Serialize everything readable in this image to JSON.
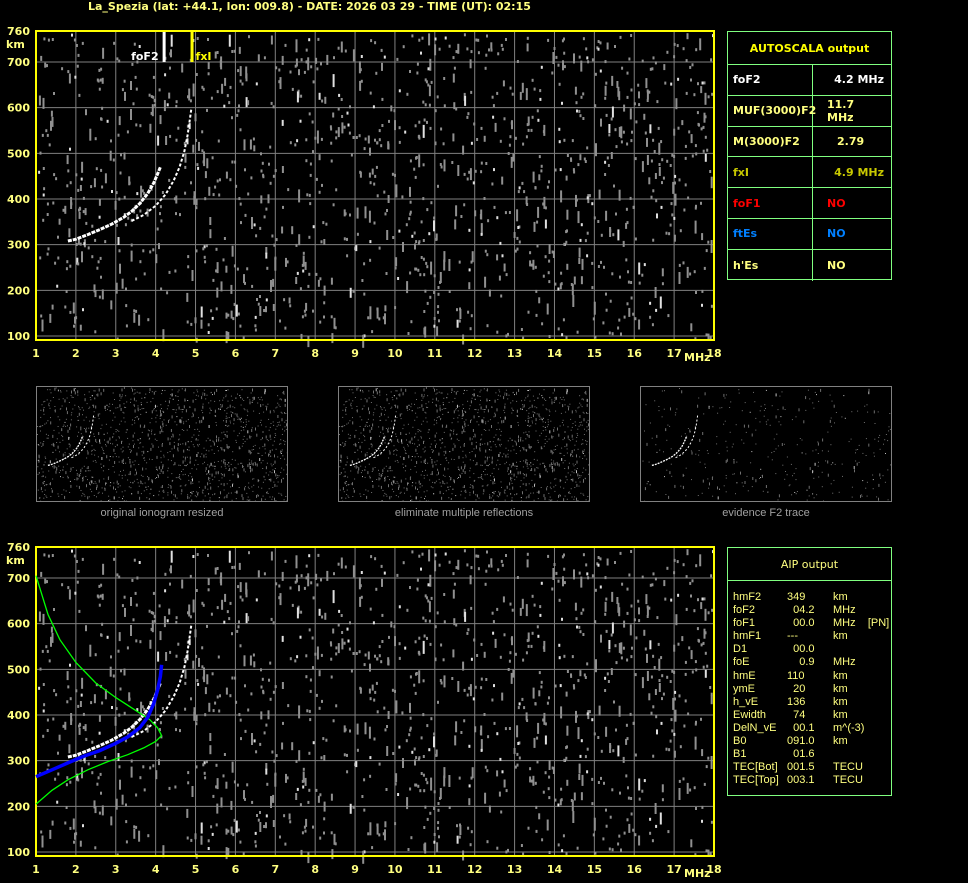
{
  "header": {
    "title": "La_Spezia (lat: +44.1, lon: 009.8) - DATE: 2026 03 29 - TIME (UT): 02:15"
  },
  "colors": {
    "frame": "#ffff00",
    "grid": "#808080",
    "label": "#ffff80",
    "table_border": "#80ff80",
    "trace": "#ffffff",
    "profile": "#00ff00",
    "aip_trace": "#0000ff",
    "foF1": "#ff0000",
    "ftEs": "#0080ff",
    "fxI": "#c8c800"
  },
  "axes": {
    "x_ticks": [
      "1",
      "2",
      "3",
      "4",
      "5",
      "6",
      "7",
      "8",
      "9",
      "10",
      "11",
      "12",
      "13",
      "14",
      "15",
      "16",
      "17",
      "18"
    ],
    "x_unit": "MHz",
    "y_ticks": [
      "760",
      "700",
      "600",
      "500",
      "400",
      "300",
      "200",
      "100"
    ],
    "y_unit": "km",
    "xlim": [
      1,
      18
    ],
    "ylim": [
      100,
      760
    ]
  },
  "ionogram_top": {
    "markers": {
      "foF2_label": "foF2",
      "foF2_value": 4.2,
      "fxI_label": "fxI",
      "fxI_value": 4.9
    },
    "o_trace": [
      [
        1.8,
        308
      ],
      [
        2.0,
        312
      ],
      [
        2.3,
        322
      ],
      [
        2.6,
        333
      ],
      [
        2.9,
        345
      ],
      [
        3.2,
        360
      ],
      [
        3.4,
        373
      ],
      [
        3.6,
        390
      ],
      [
        3.8,
        412
      ],
      [
        3.95,
        435
      ],
      [
        4.05,
        455
      ],
      [
        4.12,
        470
      ]
    ],
    "x_trace": [
      [
        3.4,
        352
      ],
      [
        3.7,
        365
      ],
      [
        4.0,
        385
      ],
      [
        4.25,
        410
      ],
      [
        4.45,
        440
      ],
      [
        4.6,
        470
      ],
      [
        4.72,
        505
      ],
      [
        4.8,
        540
      ],
      [
        4.86,
        575
      ],
      [
        4.9,
        600
      ]
    ]
  },
  "thumbnails": [
    {
      "caption": "original ionogram resized"
    },
    {
      "caption": "eliminate multiple reflections"
    },
    {
      "caption": "evidence F2 trace"
    }
  ],
  "ionogram_bottom": {
    "profile_upper": [
      [
        1.0,
        705
      ],
      [
        1.3,
        620
      ],
      [
        1.6,
        565
      ],
      [
        2.0,
        515
      ],
      [
        2.5,
        470
      ],
      [
        3.0,
        438
      ],
      [
        3.5,
        410
      ],
      [
        3.85,
        390
      ],
      [
        4.05,
        372
      ],
      [
        4.15,
        355
      ]
    ],
    "profile_lower": [
      [
        1.0,
        205
      ],
      [
        1.4,
        235
      ],
      [
        1.8,
        258
      ],
      [
        2.3,
        280
      ],
      [
        2.8,
        298
      ],
      [
        3.3,
        313
      ],
      [
        3.7,
        328
      ],
      [
        4.0,
        342
      ],
      [
        4.15,
        355
      ]
    ],
    "aip_trace": [
      [
        1.0,
        265
      ],
      [
        1.4,
        280
      ],
      [
        1.8,
        295
      ],
      [
        2.2,
        310
      ],
      [
        2.6,
        322
      ],
      [
        3.0,
        338
      ],
      [
        3.3,
        352
      ],
      [
        3.6,
        372
      ],
      [
        3.8,
        395
      ],
      [
        3.95,
        425
      ],
      [
        4.05,
        455
      ],
      [
        4.12,
        485
      ],
      [
        4.15,
        510
      ]
    ]
  },
  "autoscala": {
    "title": "AUTOSCALA output",
    "rows": [
      {
        "key": "foF2",
        "value": "4.2 MHz",
        "color": "#ffffff",
        "align": "right"
      },
      {
        "key": "MUF(3000)F2",
        "value": "11.7 MHz",
        "color": "#ffff80",
        "align": "right"
      },
      {
        "key": "M(3000)F2",
        "value": "2.79",
        "color": "#ffff80",
        "align": "center"
      },
      {
        "key": "fxI",
        "value": "4.9 MHz",
        "color": "#c8c800",
        "align": "right"
      },
      {
        "key": "foF1",
        "value": "NO",
        "color": "#ff0000",
        "align": "left"
      },
      {
        "key": "ftEs",
        "value": "NO",
        "color": "#0080ff",
        "align": "left"
      },
      {
        "key": "h'Es",
        "value": "NO",
        "color": "#ffff80",
        "align": "left"
      }
    ]
  },
  "aip": {
    "title": "AIP output",
    "rows": [
      {
        "name": "hmF2",
        "value": "349",
        "unit": "km"
      },
      {
        "name": "foF2",
        "value": "  04.2",
        "unit": "MHz"
      },
      {
        "name": "foF1",
        "value": "  00.0",
        "unit": "MHz    [PN]"
      },
      {
        "name": "hmF1",
        "value": "---",
        "unit": "km"
      },
      {
        "name": "D1",
        "value": "  00.0",
        "unit": ""
      },
      {
        "name": "foE",
        "value": "    0.9",
        "unit": "MHz"
      },
      {
        "name": "hmE",
        "value": "110",
        "unit": "km"
      },
      {
        "name": "ymE",
        "value": "  20",
        "unit": "km"
      },
      {
        "name": "h_vE",
        "value": "136",
        "unit": "km"
      },
      {
        "name": "Ewidth",
        "value": "  74",
        "unit": "km"
      },
      {
        "name": "DelN_vE",
        "value": "  00.1",
        "unit": "m^(-3)"
      },
      {
        "name": "B0",
        "value": "091.0",
        "unit": "km"
      },
      {
        "name": "B1",
        "value": "  01.6",
        "unit": ""
      },
      {
        "name": "TEC[Bot]",
        "value": "001.5",
        "unit": "TECU"
      },
      {
        "name": "TEC[Top]",
        "value": "003.1",
        "unit": "TECU"
      }
    ]
  }
}
